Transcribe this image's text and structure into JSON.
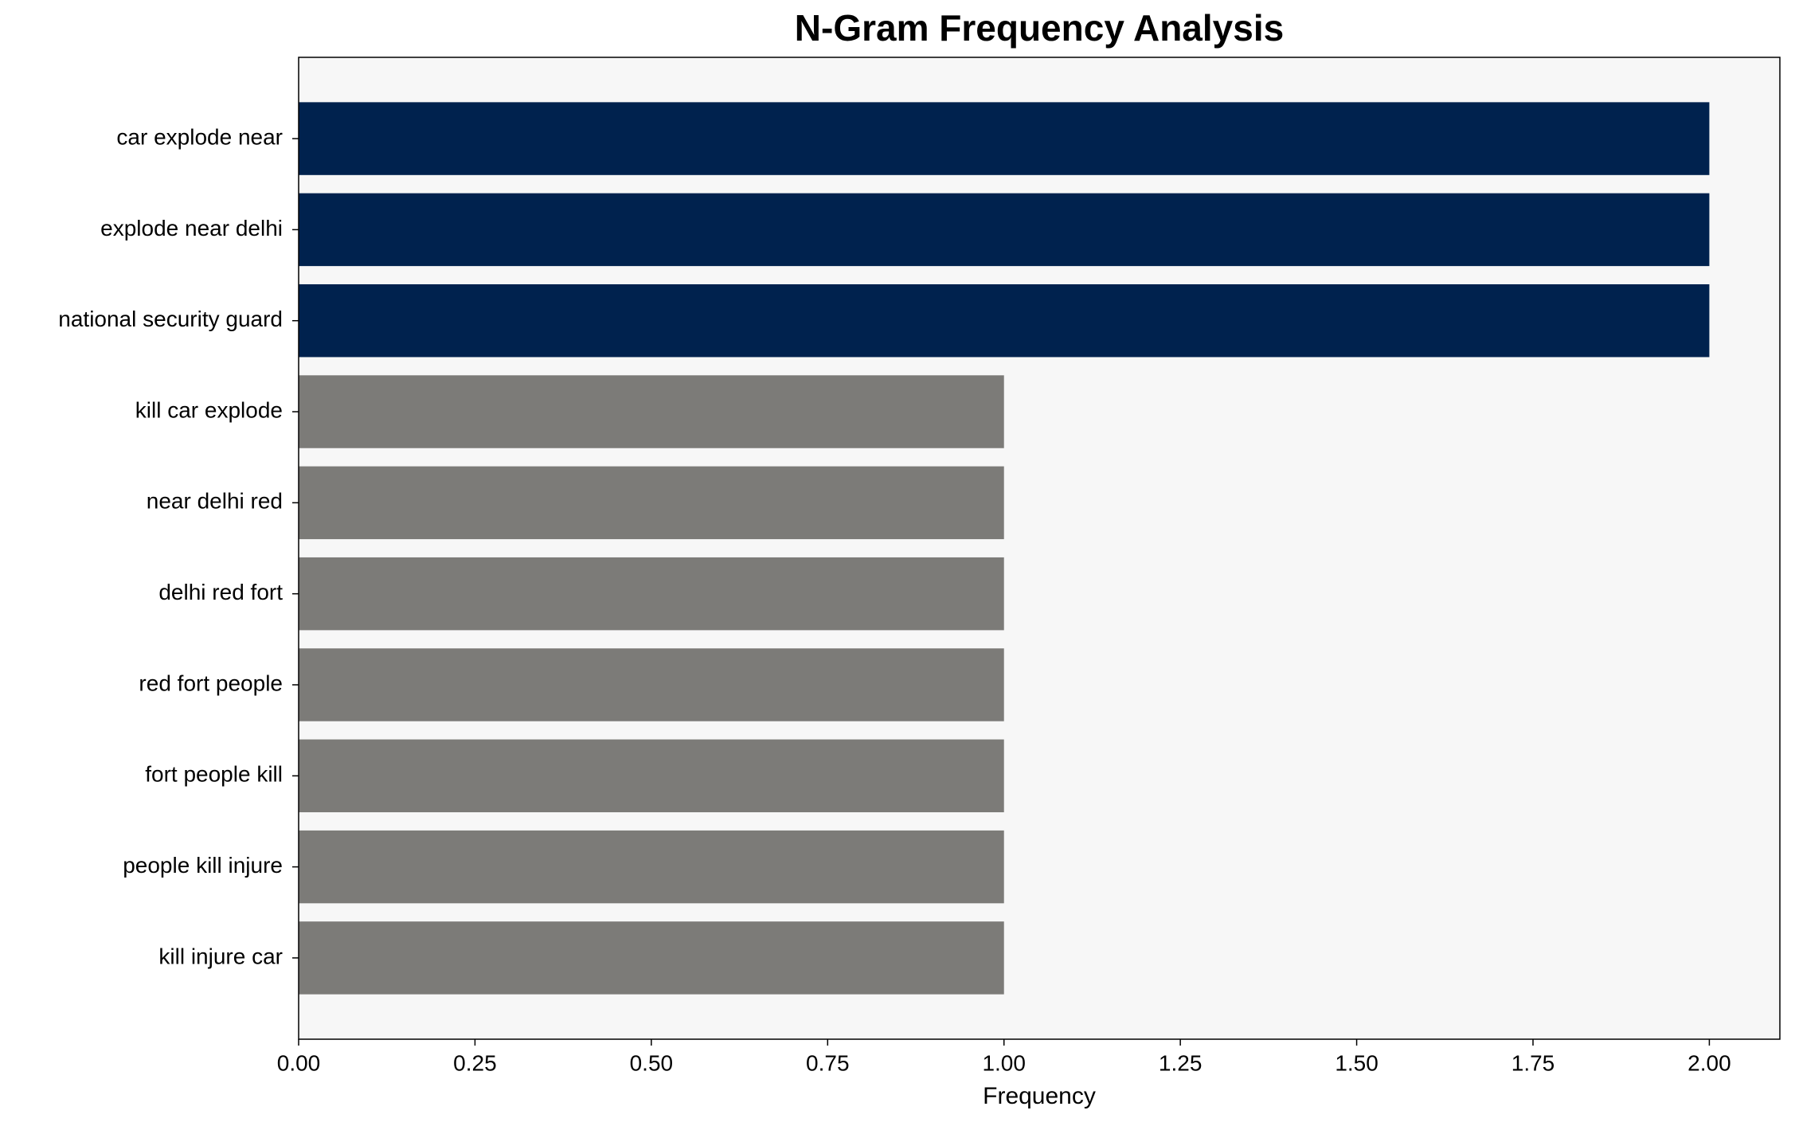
{
  "chart_data": {
    "type": "hbar",
    "title": "N-Gram Frequency Analysis",
    "x_label": "Frequency",
    "categories": [
      "car explode near",
      "explode near delhi",
      "national security guard",
      "kill car explode",
      "near delhi red",
      "delhi red fort",
      "red fort people",
      "fort people kill",
      "people kill injure",
      "kill injure car"
    ],
    "values": [
      2,
      2,
      2,
      1,
      1,
      1,
      1,
      1,
      1,
      1
    ],
    "colors": [
      "#00224e",
      "#00224e",
      "#00224e",
      "#7c7b78",
      "#7c7b78",
      "#7c7b78",
      "#7c7b78",
      "#7c7b78",
      "#7c7b78",
      "#7c7b78"
    ],
    "xlim": [
      0,
      2.1
    ],
    "xticks": [
      {
        "value": 0,
        "label": "0.00"
      },
      {
        "value": 0.25,
        "label": "0.25"
      },
      {
        "value": 0.5,
        "label": "0.50"
      },
      {
        "value": 0.75,
        "label": "0.75"
      },
      {
        "value": 1,
        "label": "1.00"
      },
      {
        "value": 1.25,
        "label": "1.25"
      },
      {
        "value": 1.5,
        "label": "1.50"
      },
      {
        "value": 1.75,
        "label": "1.75"
      },
      {
        "value": 2,
        "label": "2.00"
      }
    ],
    "grid": false
  }
}
